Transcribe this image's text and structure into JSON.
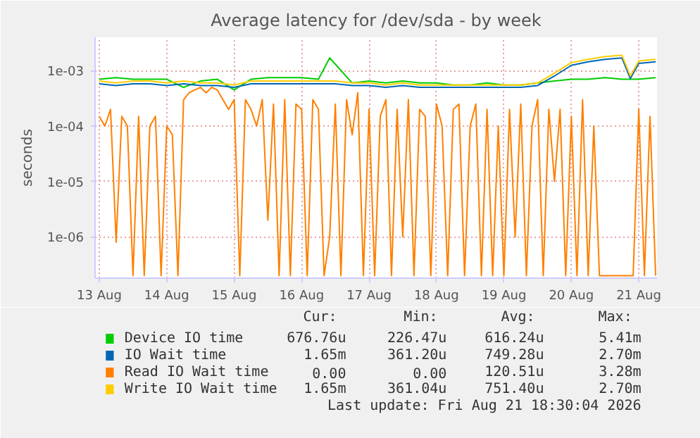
{
  "chart_data": {
    "type": "line",
    "title": "Average latency for /dev/sda - by week",
    "ylabel": "seconds",
    "log": "y",
    "grid": true,
    "legend": "bottom",
    "xlim": [
      "2026-08-12T22:30",
      "2026-08-21T06:30"
    ],
    "xticks": [
      {
        "value": "2026-08-13",
        "label": "13 Aug"
      },
      {
        "value": "2026-08-14",
        "label": "14 Aug"
      },
      {
        "value": "2026-08-15",
        "label": "15 Aug"
      },
      {
        "value": "2026-08-16",
        "label": "16 Aug"
      },
      {
        "value": "2026-08-17",
        "label": "17 Aug"
      },
      {
        "value": "2026-08-18",
        "label": "18 Aug"
      },
      {
        "value": "2026-08-19",
        "label": "19 Aug"
      },
      {
        "value": "2026-08-20",
        "label": "20 Aug"
      },
      {
        "value": "2026-08-21",
        "label": "21 Aug"
      }
    ],
    "ylim": [
      1.8e-07,
      0.004
    ],
    "yticks": [
      {
        "value": 1e-06,
        "label": "1e-06"
      },
      {
        "value": 1e-05,
        "label": "1e-05"
      },
      {
        "value": 0.0001,
        "label": "1e-04"
      },
      {
        "value": 0.001,
        "label": "1e-03"
      }
    ],
    "annotations": [
      "Cur:",
      "Min:",
      "Avg:",
      "Max:",
      "676.76u",
      "226.47u",
      "616.24u",
      "5.41m",
      "1.65m",
      "361.20u",
      "749.28u",
      "2.70m",
      "0.00",
      "0.00",
      "120.51u",
      "3.28m",
      "1.65m",
      "361.04u",
      "751.40u",
      "2.70m",
      "Last update: Fri Aug 21 18:30:04 2026"
    ],
    "series": [
      {
        "name": "Device IO time",
        "color": "#00cc00",
        "x": [
          "2026-08-13T00:00",
          "2026-08-13T06:00",
          "2026-08-13T12:00",
          "2026-08-13T18:00",
          "2026-08-14T00:00",
          "2026-08-14T06:00",
          "2026-08-14T12:00",
          "2026-08-14T18:00",
          "2026-08-15T00:00",
          "2026-08-15T06:00",
          "2026-08-15T12:00",
          "2026-08-15T18:00",
          "2026-08-16T00:00",
          "2026-08-16T06:00",
          "2026-08-16T10:00",
          "2026-08-16T18:00",
          "2026-08-17T00:00",
          "2026-08-17T06:00",
          "2026-08-17T12:00",
          "2026-08-17T18:00",
          "2026-08-18T00:00",
          "2026-08-18T06:00",
          "2026-08-18T12:00",
          "2026-08-18T18:00",
          "2026-08-19T00:00",
          "2026-08-19T06:00",
          "2026-08-19T12:00",
          "2026-08-19T18:00",
          "2026-08-20T00:00",
          "2026-08-20T06:00",
          "2026-08-20T12:00",
          "2026-08-20T18:00",
          "2026-08-21T00:00",
          "2026-08-21T06:00"
        ],
        "values": [
          0.0007,
          0.00075,
          0.0007,
          0.0007,
          0.0007,
          0.0005,
          0.00065,
          0.0007,
          0.00045,
          0.0007,
          0.00075,
          0.00075,
          0.00075,
          0.0007,
          0.0017,
          0.0006,
          0.00065,
          0.0006,
          0.00065,
          0.0006,
          0.0006,
          0.00055,
          0.00055,
          0.0006,
          0.00055,
          0.00055,
          0.0006,
          0.00065,
          0.0007,
          0.0007,
          0.00075,
          0.0007,
          0.0007,
          0.00075
        ]
      },
      {
        "name": "IO Wait time",
        "color": "#0066b3",
        "x": [
          "2026-08-13T00:00",
          "2026-08-13T06:00",
          "2026-08-13T12:00",
          "2026-08-13T18:00",
          "2026-08-14T00:00",
          "2026-08-14T06:00",
          "2026-08-14T12:00",
          "2026-08-14T18:00",
          "2026-08-15T00:00",
          "2026-08-15T06:00",
          "2026-08-15T12:00",
          "2026-08-15T18:00",
          "2026-08-16T00:00",
          "2026-08-16T06:00",
          "2026-08-16T12:00",
          "2026-08-16T18:00",
          "2026-08-17T00:00",
          "2026-08-17T06:00",
          "2026-08-17T12:00",
          "2026-08-17T18:00",
          "2026-08-18T00:00",
          "2026-08-18T06:00",
          "2026-08-18T12:00",
          "2026-08-18T18:00",
          "2026-08-19T00:00",
          "2026-08-19T06:00",
          "2026-08-19T12:00",
          "2026-08-19T18:00",
          "2026-08-20T00:00",
          "2026-08-20T06:00",
          "2026-08-20T12:00",
          "2026-08-20T18:00",
          "2026-08-20T21:00",
          "2026-08-21T00:00",
          "2026-08-21T06:00"
        ],
        "values": [
          0.00058,
          0.00054,
          0.00058,
          0.00058,
          0.00054,
          0.00058,
          0.00054,
          0.00054,
          0.0005,
          0.00058,
          0.00058,
          0.00058,
          0.00058,
          0.00058,
          0.00058,
          0.00054,
          0.00054,
          0.0005,
          0.00054,
          0.0005,
          0.0005,
          0.0005,
          0.0005,
          0.0005,
          0.0005,
          0.0005,
          0.00054,
          0.0008,
          0.00125,
          0.00145,
          0.0016,
          0.0017,
          0.00072,
          0.00135,
          0.00145
        ]
      },
      {
        "name": "Read IO Wait time",
        "color": "#ff8000",
        "x": [
          "2026-08-13T00:00",
          "2026-08-13T02:00",
          "2026-08-13T04:00",
          "2026-08-13T06:00",
          "2026-08-13T08:00",
          "2026-08-13T10:00",
          "2026-08-13T12:00",
          "2026-08-13T14:00",
          "2026-08-13T16:00",
          "2026-08-13T18:00",
          "2026-08-13T20:00",
          "2026-08-13T22:00",
          "2026-08-14T00:00",
          "2026-08-14T02:00",
          "2026-08-14T04:00",
          "2026-08-14T06:00",
          "2026-08-14T08:00",
          "2026-08-14T10:00",
          "2026-08-14T12:00",
          "2026-08-14T14:00",
          "2026-08-14T16:00",
          "2026-08-14T18:00",
          "2026-08-14T20:00",
          "2026-08-14T22:00",
          "2026-08-15T00:00",
          "2026-08-15T02:00",
          "2026-08-15T04:00",
          "2026-08-15T06:00",
          "2026-08-15T08:00",
          "2026-08-15T10:00",
          "2026-08-15T12:00",
          "2026-08-15T14:00",
          "2026-08-15T16:00",
          "2026-08-15T18:00",
          "2026-08-15T20:00",
          "2026-08-15T22:00",
          "2026-08-16T00:00",
          "2026-08-16T02:00",
          "2026-08-16T04:00",
          "2026-08-16T06:00",
          "2026-08-16T08:00",
          "2026-08-16T10:00",
          "2026-08-16T12:00",
          "2026-08-16T14:00",
          "2026-08-16T16:00",
          "2026-08-16T18:00",
          "2026-08-16T20:00",
          "2026-08-16T22:00",
          "2026-08-17T00:00",
          "2026-08-17T02:00",
          "2026-08-17T04:00",
          "2026-08-17T06:00",
          "2026-08-17T08:00",
          "2026-08-17T10:00",
          "2026-08-17T12:00",
          "2026-08-17T14:00",
          "2026-08-17T16:00",
          "2026-08-17T18:00",
          "2026-08-17T20:00",
          "2026-08-17T22:00",
          "2026-08-18T00:00",
          "2026-08-18T02:00",
          "2026-08-18T04:00",
          "2026-08-18T06:00",
          "2026-08-18T08:00",
          "2026-08-18T10:00",
          "2026-08-18T12:00",
          "2026-08-18T14:00",
          "2026-08-18T16:00",
          "2026-08-18T18:00",
          "2026-08-18T20:00",
          "2026-08-18T22:00",
          "2026-08-19T00:00",
          "2026-08-19T02:00",
          "2026-08-19T04:00",
          "2026-08-19T06:00",
          "2026-08-19T08:00",
          "2026-08-19T10:00",
          "2026-08-19T12:00",
          "2026-08-19T14:00",
          "2026-08-19T16:00",
          "2026-08-19T18:00",
          "2026-08-19T20:00",
          "2026-08-19T22:00",
          "2026-08-20T00:00",
          "2026-08-20T02:00",
          "2026-08-20T04:00",
          "2026-08-20T06:00",
          "2026-08-20T08:00",
          "2026-08-20T10:00",
          "2026-08-20T12:00",
          "2026-08-20T14:00",
          "2026-08-20T16:00",
          "2026-08-20T18:00",
          "2026-08-20T20:00",
          "2026-08-20T22:00",
          "2026-08-21T00:00",
          "2026-08-21T02:00",
          "2026-08-21T04:00",
          "2026-08-21T06:00"
        ],
        "values": [
          0.00015,
          0.0001,
          0.0002,
          8e-07,
          0.00015,
          0.0001,
          2e-07,
          0.00015,
          2e-07,
          0.0001,
          0.00015,
          2e-07,
          0.0001,
          7e-05,
          2e-07,
          0.0003,
          0.0004,
          0.00045,
          0.0005,
          0.0004,
          0.0005,
          0.00045,
          0.0003,
          0.0002,
          0.0003,
          2e-07,
          0.0003,
          0.0002,
          0.0001,
          0.0003,
          2e-06,
          0.00025,
          2e-07,
          0.0003,
          2e-07,
          0.00025,
          0.0002,
          2e-07,
          0.0003,
          0.0002,
          2e-07,
          1e-06,
          0.00025,
          2e-07,
          0.0003,
          7e-05,
          0.0004,
          2e-07,
          0.0002,
          2e-07,
          0.00015,
          0.0003,
          2e-07,
          0.0002,
          1e-06,
          0.0003,
          2e-07,
          0.0002,
          0.00015,
          2e-07,
          0.00025,
          0.0001,
          2e-07,
          0.0002,
          0.00025,
          2e-07,
          0.0001,
          0.00025,
          2e-07,
          0.0002,
          2e-07,
          0.0001,
          2e-07,
          0.0002,
          1e-06,
          0.00025,
          2e-07,
          0.0001,
          0.0003,
          2e-07,
          0.0002,
          1e-05,
          0.0002,
          2e-07,
          0.00015,
          2e-07,
          0.0003,
          2e-07,
          0.0001,
          2e-07,
          2e-07,
          2e-07,
          2e-07,
          2e-07,
          2e-07,
          2e-07,
          0.0002,
          2e-07,
          0.00015,
          2e-07
        ]
      },
      {
        "name": "Write IO Wait time",
        "color": "#ffcc00",
        "x": [
          "2026-08-13T00:00",
          "2026-08-13T06:00",
          "2026-08-13T12:00",
          "2026-08-13T18:00",
          "2026-08-14T00:00",
          "2026-08-14T06:00",
          "2026-08-14T12:00",
          "2026-08-14T18:00",
          "2026-08-15T00:00",
          "2026-08-15T06:00",
          "2026-08-15T12:00",
          "2026-08-15T18:00",
          "2026-08-16T00:00",
          "2026-08-16T06:00",
          "2026-08-16T12:00",
          "2026-08-16T18:00",
          "2026-08-17T00:00",
          "2026-08-17T06:00",
          "2026-08-17T12:00",
          "2026-08-17T18:00",
          "2026-08-18T00:00",
          "2026-08-18T06:00",
          "2026-08-18T12:00",
          "2026-08-18T18:00",
          "2026-08-19T00:00",
          "2026-08-19T06:00",
          "2026-08-19T12:00",
          "2026-08-19T18:00",
          "2026-08-20T00:00",
          "2026-08-20T06:00",
          "2026-08-20T12:00",
          "2026-08-20T18:00",
          "2026-08-20T21:00",
          "2026-08-21T00:00",
          "2026-08-21T06:00"
        ],
        "values": [
          0.00065,
          0.0006,
          0.00065,
          0.00065,
          0.0006,
          0.00065,
          0.0006,
          0.0006,
          0.00055,
          0.00065,
          0.00065,
          0.00065,
          0.00065,
          0.00065,
          0.00065,
          0.0006,
          0.0006,
          0.00055,
          0.0006,
          0.00055,
          0.00055,
          0.00055,
          0.00055,
          0.00055,
          0.00055,
          0.00055,
          0.0006,
          0.0009,
          0.0014,
          0.0016,
          0.0018,
          0.0019,
          0.0008,
          0.0015,
          0.0016
        ]
      }
    ]
  }
}
